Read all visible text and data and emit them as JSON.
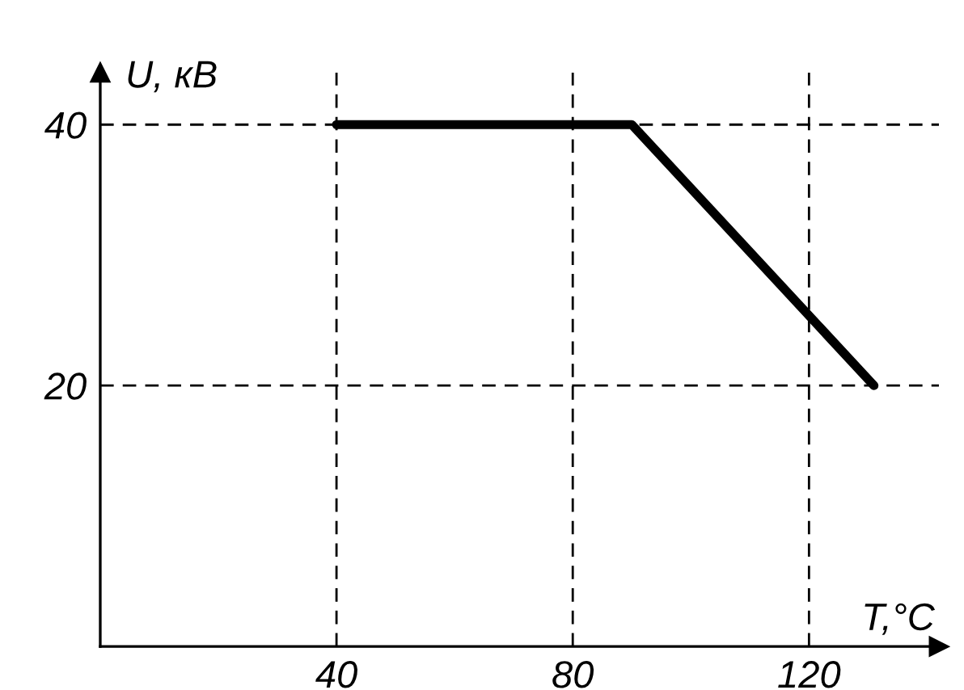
{
  "chart_data": {
    "type": "line",
    "xlabel": "T,°C",
    "ylabel": "U, кВ",
    "x": [
      40,
      90,
      131
    ],
    "series": [
      {
        "color": "#000000",
        "values": [
          40,
          40,
          20
        ]
      }
    ],
    "xlim": [
      0,
      142
    ],
    "ylim": [
      0,
      44
    ],
    "xticks": [
      40,
      80,
      120
    ],
    "yticks": [
      20,
      40
    ],
    "grid": true,
    "marker": "none",
    "line_style": "solid",
    "legend": false
  }
}
